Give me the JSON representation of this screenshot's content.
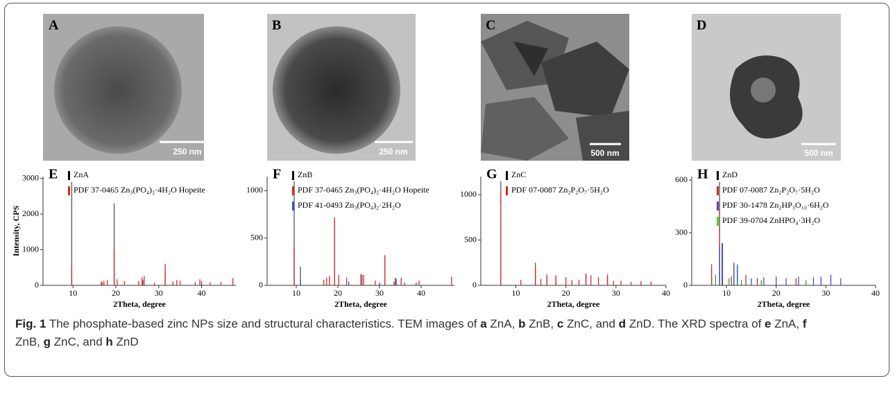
{
  "panels": [
    {
      "label": "A",
      "scale": "250 nm"
    },
    {
      "label": "B",
      "scale": "250 nm"
    },
    {
      "label": "C",
      "scale": "500 nm"
    },
    {
      "label": "D",
      "scale": "500 nm"
    }
  ],
  "chart_data": [
    {
      "type": "stick",
      "panel": "E",
      "ylabel": "Intensity, CPS",
      "xlabel": "2Theta, degree",
      "xlim": [
        3,
        48
      ],
      "xticks": [
        10,
        20,
        30,
        40
      ],
      "ylim": [
        0,
        3050
      ],
      "yticks": [
        0,
        1000,
        2000,
        3000
      ],
      "series": [
        {
          "name": "ZnA",
          "color": "#555555",
          "legend_color": "#000000",
          "x": [
            9.7,
            19.6,
            31.5,
            26.3,
            40.0,
            16.8
          ],
          "values": [
            2900,
            2300,
            420,
            150,
            120,
            80
          ]
        },
        {
          "name": "PDF 37-0465 Zn₃(PO₄)₂·4H₂O Hopeite",
          "color": "#d62728",
          "legend_color": "#d62728",
          "x": [
            9.7,
            16.6,
            17.2,
            18.0,
            19.6,
            20.3,
            22.0,
            25.3,
            26.1,
            26.6,
            29.0,
            31.5,
            33.3,
            34.2,
            35.0,
            38.5,
            39.6,
            42.0,
            44.5,
            47.3
          ],
          "values": [
            560,
            110,
            130,
            150,
            1000,
            170,
            120,
            120,
            230,
            260,
            80,
            600,
            110,
            150,
            130,
            90,
            170,
            90,
            90,
            200
          ]
        }
      ]
    },
    {
      "type": "stick",
      "panel": "F",
      "xlabel": "2Theta, degree",
      "xlim": [
        3,
        48
      ],
      "xticks": [
        10,
        20,
        30,
        40
      ],
      "ylim": [
        0,
        1150
      ],
      "yticks": [
        0,
        500,
        1000
      ],
      "series": [
        {
          "name": "ZnB",
          "color": "#555555",
          "legend_color": "#000000",
          "x": [
            9.5,
            11.0,
            19.2,
            31.3,
            25.8,
            33.8
          ],
          "values": [
            1100,
            200,
            720,
            300,
            110,
            80
          ]
        },
        {
          "name": "PDF 37-0465 Zn₃(PO₄)₂·4H₂O Hopeite",
          "color": "#d62728",
          "legend_color": "#d62728",
          "x": [
            9.5,
            16.6,
            17.3,
            18.0,
            19.2,
            20.2,
            22.1,
            25.5,
            26.2,
            29.0,
            31.3,
            34.0,
            35.2,
            39.5,
            47.3
          ],
          "values": [
            400,
            60,
            80,
            100,
            700,
            110,
            80,
            120,
            110,
            50,
            320,
            70,
            80,
            50,
            90
          ]
        },
        {
          "name": "PDF 41-0493 Zn₃(PO₄)₂·2H₂O",
          "color": "#3b4cc0",
          "legend_color": "#3b4cc0",
          "x": [
            11.0,
            22.6,
            30.0,
            33.5,
            36.0,
            38.8
          ],
          "values": [
            60,
            40,
            30,
            40,
            30,
            30
          ]
        }
      ]
    },
    {
      "type": "stick",
      "panel": "G",
      "xlabel": "2Theta, degree",
      "xlim": [
        3,
        40
      ],
      "xticks": [
        10,
        20,
        30,
        40
      ],
      "ylim": [
        0,
        1200
      ],
      "yticks": [
        0,
        500,
        1000
      ],
      "series": [
        {
          "name": "ZnC",
          "color": "#555555",
          "legend_color": "#000000",
          "x": [
            7.0,
            13.9,
            16.2,
            18.0,
            24.0,
            28.3
          ],
          "values": [
            1150,
            250,
            90,
            110,
            120,
            100
          ]
        },
        {
          "name": "PDF 07-0087 Zn₂P₂O₇·5H₂O",
          "color": "#d62728",
          "legend_color": "#d62728",
          "x": [
            7.0,
            11.0,
            13.9,
            15.0,
            16.2,
            18.0,
            20.0,
            21.2,
            22.6,
            24.0,
            25.0,
            26.5,
            28.3,
            29.5,
            31.0,
            33.0,
            35.0,
            37.0
          ],
          "values": [
            1050,
            60,
            200,
            70,
            120,
            110,
            90,
            60,
            60,
            130,
            110,
            90,
            120,
            50,
            50,
            40,
            45,
            40
          ]
        }
      ]
    },
    {
      "type": "stick",
      "panel": "H",
      "xlabel": "2Theta, degree",
      "xlim": [
        3,
        40
      ],
      "xticks": [
        10,
        20,
        30,
        40
      ],
      "ylim": [
        0,
        620
      ],
      "yticks": [
        0,
        300,
        600
      ],
      "series": [
        {
          "name": "ZnD",
          "color": "#555555",
          "legend_color": "#000000",
          "x": [
            8.6,
            9.1,
            11.5,
            12.2,
            7.0
          ],
          "values": [
            590,
            240,
            120,
            110,
            50
          ]
        },
        {
          "name": "PDF 07-0087 Zn₂P₂O₇·5H₂O",
          "color": "#d62728",
          "legend_color": "#d62728",
          "x": [
            7.0,
            8.6,
            11.0,
            13.9,
            16.2,
            24.0
          ],
          "values": [
            120,
            470,
            50,
            60,
            40,
            40
          ]
        },
        {
          "name": "PDF 30-1478 Zn₂HP₃O₁₀·6H₂O",
          "color": "#3b4cc0",
          "legend_color": "#3b4cc0",
          "x": [
            8.6,
            9.2,
            11.5,
            12.2,
            15.0,
            17.5,
            20.0,
            22.0,
            24.5,
            27.5,
            29.0,
            31.0,
            33.0
          ],
          "values": [
            230,
            240,
            130,
            120,
            40,
            45,
            50,
            40,
            50,
            45,
            50,
            60,
            40
          ]
        },
        {
          "name": "PDF 39-0704 ZnHPO₄·3H₂O",
          "color": "#2ca02c",
          "legend_color": "#33dd33",
          "x": [
            7.8,
            10.5,
            13.0,
            17.0,
            26.0
          ],
          "values": [
            60,
            40,
            30,
            30,
            30
          ]
        }
      ]
    }
  ],
  "caption": [
    "Fig. 1",
    " The phosphate-based zinc NPs size and structural characteristics. TEM images of ",
    "a",
    " ZnA, ",
    "b",
    " ZnB, ",
    "c",
    " ZnC, and ",
    "d",
    " ZnD. The XRD spectra of ",
    "e",
    " ZnA, ",
    "f",
    "ZnB, ",
    "g",
    " ZnC, and ",
    "h",
    " ZnD"
  ]
}
